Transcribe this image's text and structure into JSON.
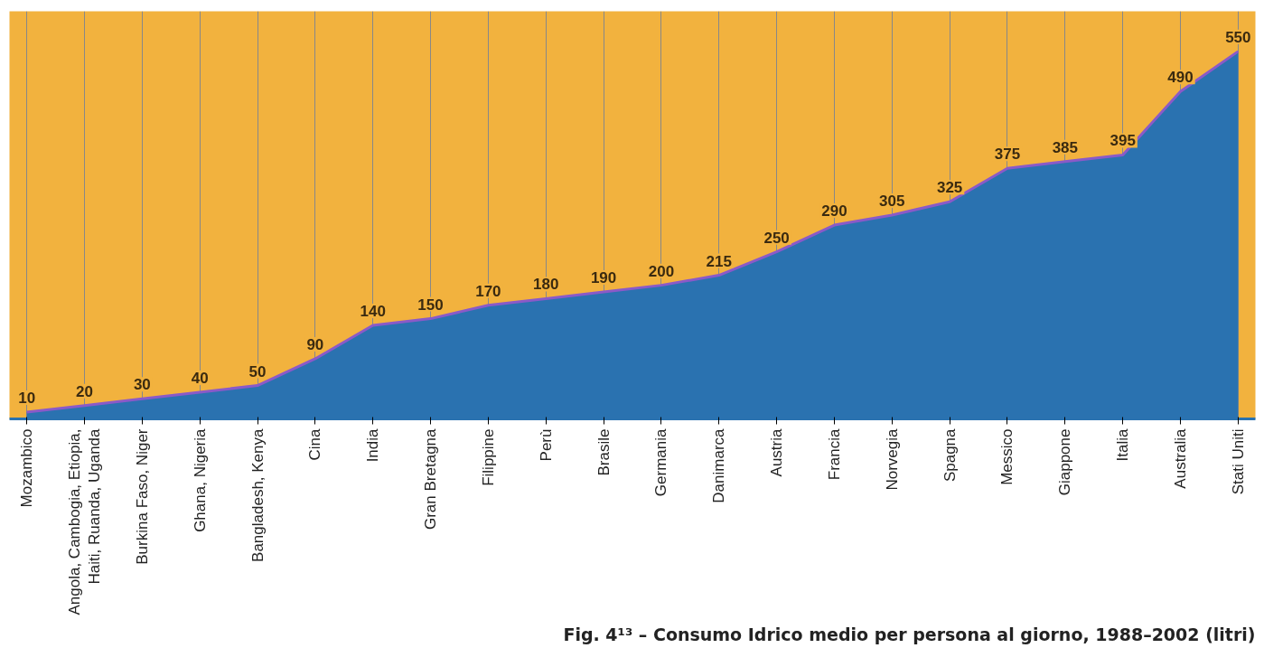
{
  "chart_data": {
    "type": "area",
    "title": "Fig. 4¹³ – Consumo Idrico medio per persona al giorno, 1988–2002 (litri)",
    "categories": [
      "Mozambico",
      "Angola, Cambogia, Etiopia,\nHaiti, Ruanda, Uganda",
      "Burkina Faso, Niger",
      "Ghana, Nigeria",
      "Bangladesh, Kenya",
      "Cina",
      "India",
      "Gran Bretagna",
      "Filippine",
      "Perù",
      "Brasile",
      "Germania",
      "Danimarca",
      "Austria",
      "Francia",
      "Norvegia",
      "Spagna",
      "Messico",
      "Giappone",
      "Italia",
      "Australia",
      "Stati Uniti"
    ],
    "series": [
      {
        "color": "#2a72b0",
        "values": [
          10,
          20,
          30,
          40,
          50,
          90,
          140,
          150,
          170,
          180,
          190,
          200,
          215,
          250,
          290,
          305,
          325,
          375,
          385,
          395,
          490,
          550
        ]
      }
    ],
    "ylim": [
      0,
      610
    ],
    "grid": "x",
    "data_labels": true
  }
}
